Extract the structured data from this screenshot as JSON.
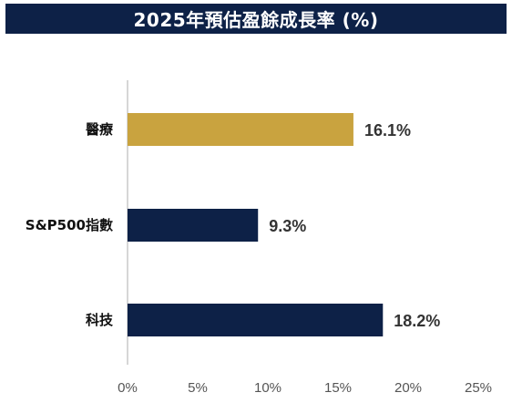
{
  "title": "2025年預估盈餘成長率 (%)",
  "colors": {
    "title_bg": "#0d2147",
    "highlight": "#c9a33f",
    "default_bar": "#0d2147",
    "axis": "#c8c8c8"
  },
  "chart_data": {
    "type": "bar",
    "orientation": "horizontal",
    "title": "2025年預估盈餘成長率 (%)",
    "categories": [
      "醫療",
      "S&P500指數",
      "科技"
    ],
    "values": [
      16.1,
      9.3,
      18.2
    ],
    "value_labels": [
      "16.1%",
      "9.3%",
      "18.2%"
    ],
    "highlight_category": "醫療",
    "xlim": [
      0,
      25
    ],
    "xticks": [
      0,
      5,
      10,
      15,
      20,
      25
    ],
    "xtick_labels": [
      "0%",
      "5%",
      "10%",
      "15%",
      "20%",
      "25%"
    ],
    "grid": false,
    "legend": "none"
  }
}
